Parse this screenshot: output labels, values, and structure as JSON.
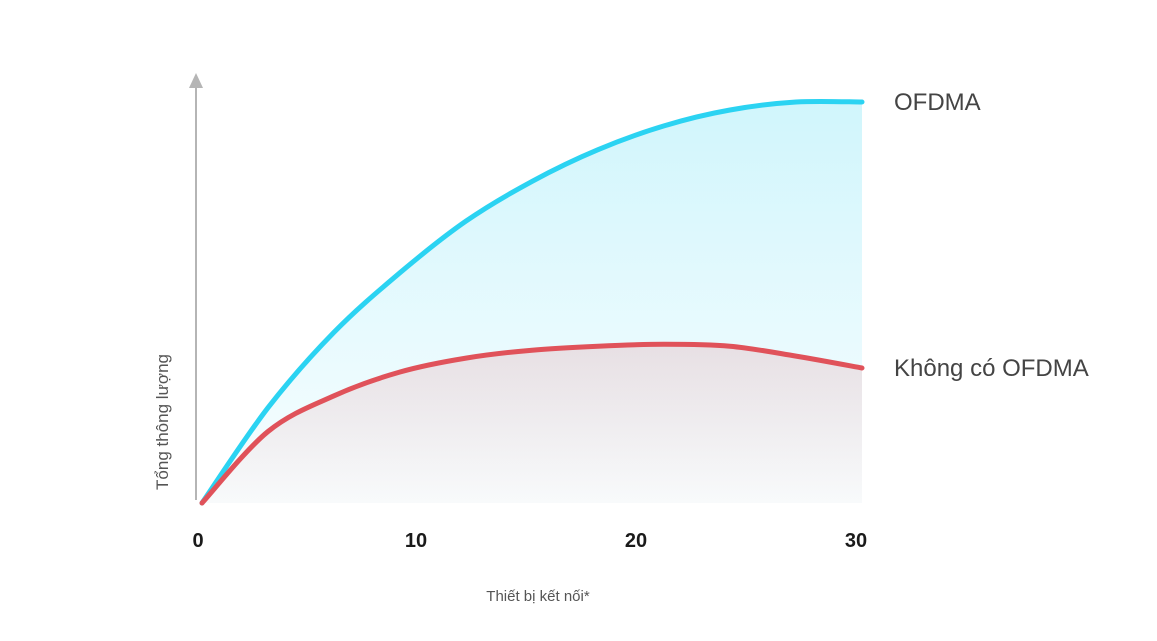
{
  "chart_data": {
    "type": "area",
    "xlabel": "Thiết bị kết nối*",
    "ylabel": "Tổng thông lượng",
    "xlim": [
      0,
      30
    ],
    "ylim": [
      0,
      100
    ],
    "xticks": [
      0,
      10,
      20,
      30
    ],
    "grid": false,
    "legend": "right",
    "series": [
      {
        "name": "OFDMA",
        "color": "#2bd3f2",
        "x": [
          0,
          3,
          6,
          9,
          12,
          15,
          18,
          21,
          24,
          27,
          30
        ],
        "values": [
          0,
          24,
          43,
          58,
          71,
          81,
          89,
          95,
          99,
          101,
          101
        ]
      },
      {
        "name": "Không có OFDMA",
        "color": "#e0525a",
        "x": [
          0,
          3,
          6,
          9,
          12,
          15,
          18,
          21,
          24,
          27,
          30
        ],
        "values": [
          0,
          18,
          27,
          33,
          36.5,
          38.5,
          39.5,
          40,
          39.5,
          37,
          34
        ]
      }
    ]
  }
}
